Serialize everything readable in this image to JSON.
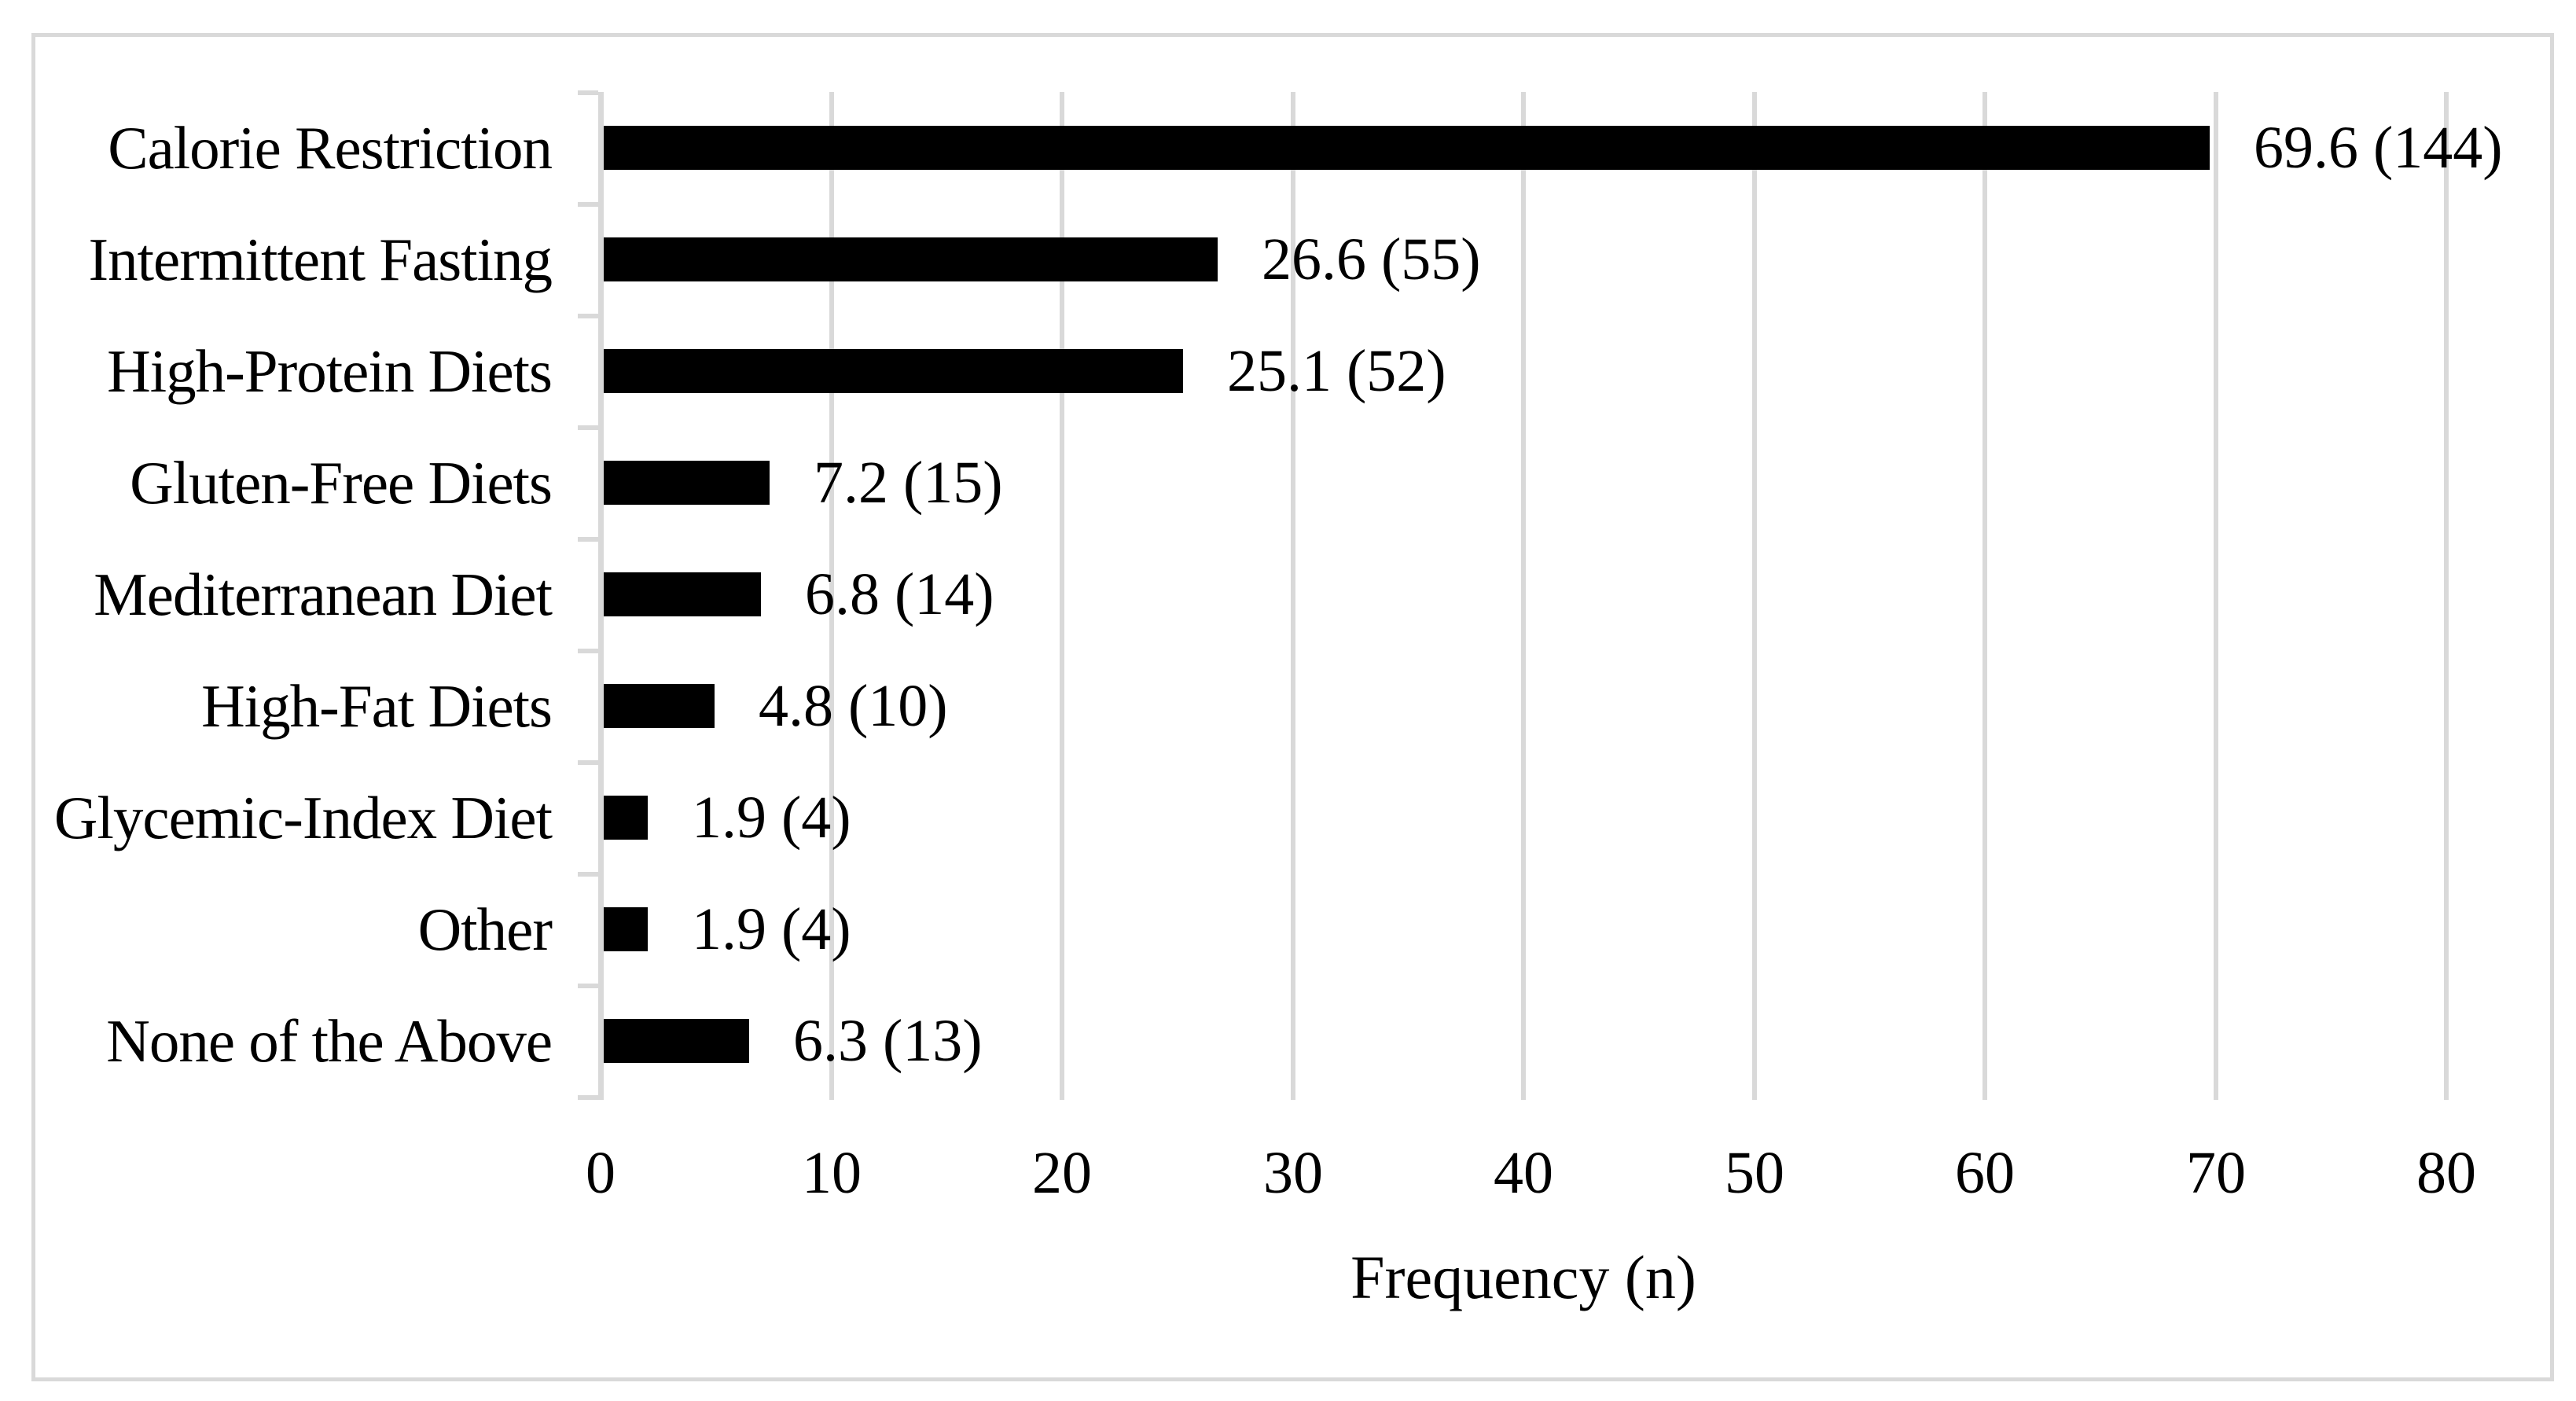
{
  "chart_data": {
    "type": "bar",
    "orientation": "horizontal",
    "title": "",
    "xlabel": "Frequency (n)",
    "ylabel": "",
    "xlim": [
      0,
      80
    ],
    "xticks": [
      0,
      10,
      20,
      30,
      40,
      50,
      60,
      70,
      80
    ],
    "grid": "vertical",
    "legend": "none",
    "categories": [
      "Calorie Restriction",
      "Intermittent Fasting",
      "High-Protein Diets",
      "Gluten-Free Diets",
      "Mediterranean Diet",
      "High-Fat Diets",
      "Glycemic-Index Diet",
      "Other",
      "None of the Above"
    ],
    "values": [
      69.6,
      26.6,
      25.1,
      7.2,
      6.8,
      4.8,
      1.9,
      1.9,
      6.3
    ],
    "counts": [
      144,
      55,
      52,
      15,
      14,
      10,
      4,
      4,
      13
    ],
    "value_labels": [
      "69.6 (144)",
      "26.6 (55)",
      "25.1 (52)",
      "7.2 (15)",
      "6.8 (14)",
      "4.8 (10)",
      "1.9 (4)",
      "1.9 (4)",
      "6.3 (13)"
    ],
    "colors": {
      "bar": "#000000",
      "gridline": "#d9d9d9",
      "axis": "#d9d9d9",
      "text": "#000000",
      "background": "#ffffff",
      "figure_border": "#d9d9d9"
    }
  }
}
